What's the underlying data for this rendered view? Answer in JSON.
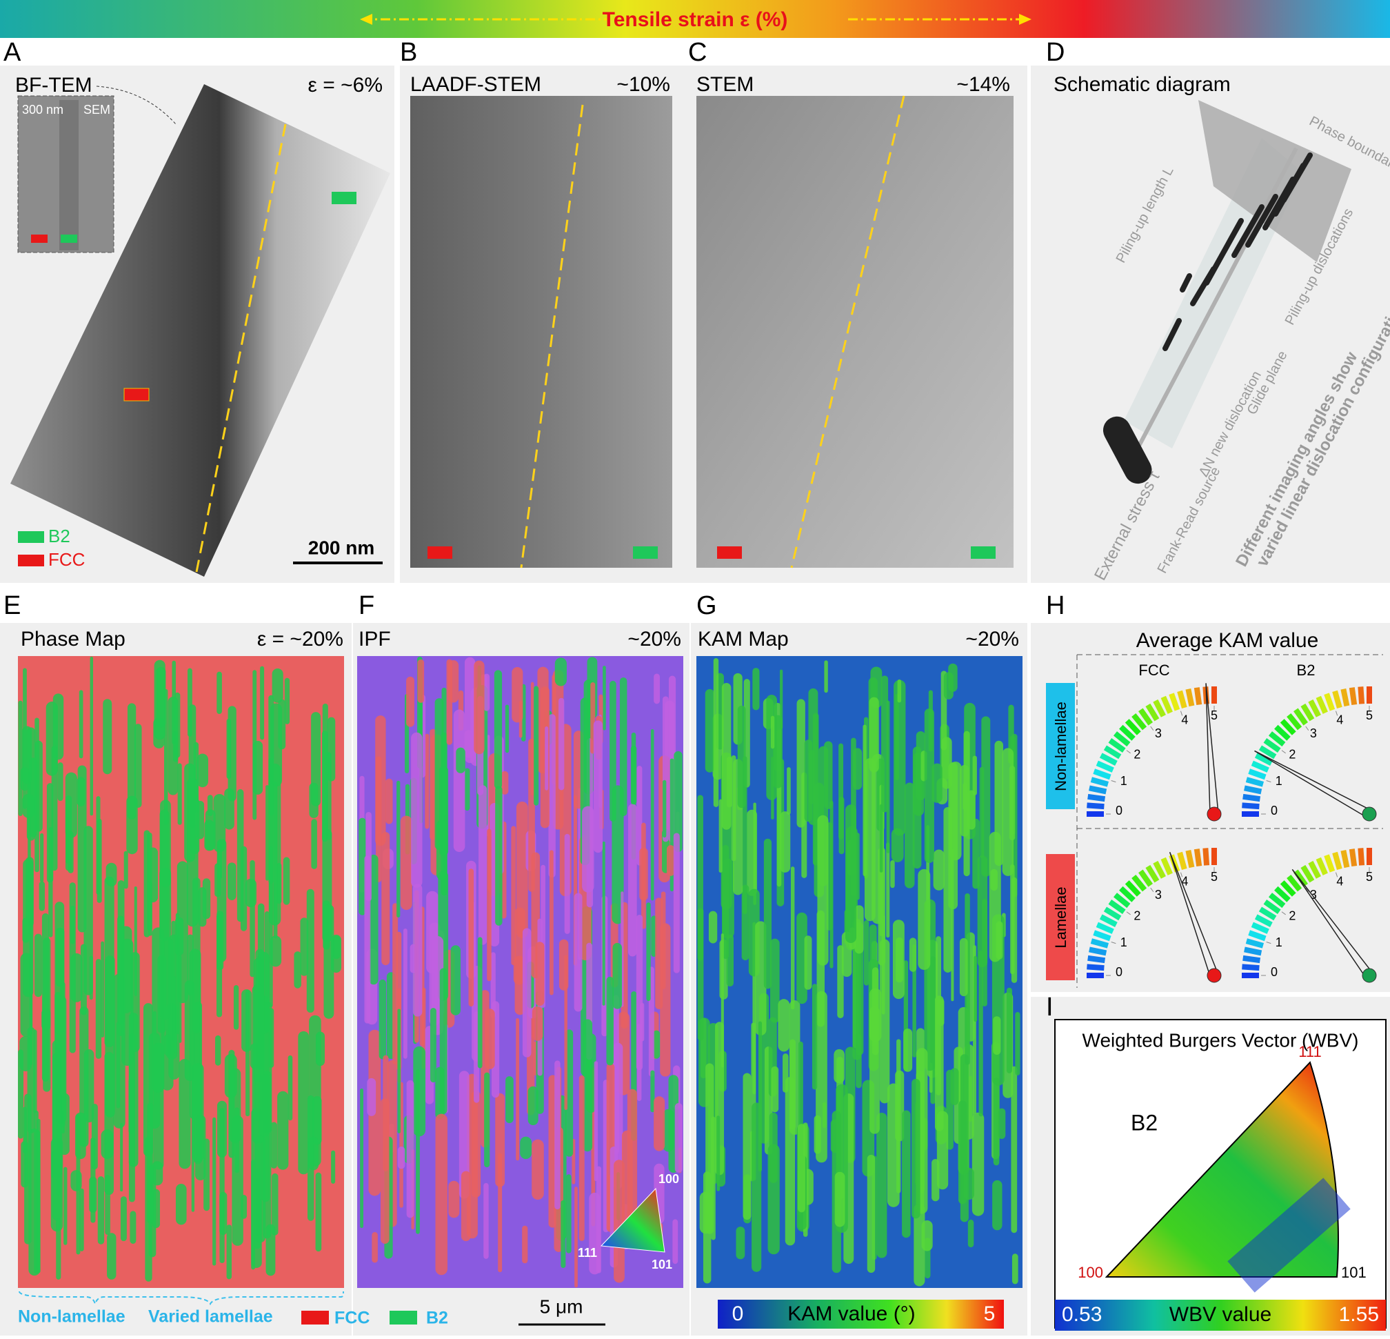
{
  "header": {
    "title": "Tensile strain ε (%)"
  },
  "panels": {
    "A": {
      "label": "A",
      "title": "BF-TEM",
      "strain": "ε = ~6%",
      "inset_scale": "300 nm",
      "inset_title": "SEM",
      "legend": [
        "B2",
        "FCC"
      ],
      "scale_bar": "200 nm"
    },
    "B": {
      "label": "B",
      "title": "LAADF-STEM",
      "strain": "~10%"
    },
    "C": {
      "label": "C",
      "title": "STEM",
      "strain": "~14%"
    },
    "D": {
      "label": "D",
      "title": "Schematic diagram",
      "annotations": [
        "Phase boundary",
        "Piling-up length L",
        "Piling-up dislocations",
        "Glide plane",
        "ΔN new dislocation",
        "Frank-Read source",
        "External stress τ",
        "Different imaging angles show",
        "varied linear dislocation configurations"
      ]
    },
    "E": {
      "label": "E",
      "title": "Phase Map",
      "strain": "ε = ~20%",
      "regions": [
        "Non-lamellae",
        "Varied lamellae"
      ],
      "legend": [
        "FCC",
        "B2"
      ]
    },
    "F": {
      "label": "F",
      "title": "IPF",
      "strain": "~20%",
      "triangle": [
        "100",
        "111",
        "101"
      ],
      "scale_bar": "5 μm"
    },
    "G": {
      "label": "G",
      "title": "KAM  Map",
      "strain": "~20%",
      "colorbar": {
        "min": 0,
        "max": 5,
        "label": "KAM value (°)"
      }
    },
    "H": {
      "label": "H",
      "title": "Average KAM value",
      "columns": [
        "FCC",
        "B2"
      ],
      "rows": [
        "Non-lamellae",
        "Lamellae"
      ],
      "ticks": [
        0,
        1,
        2,
        3,
        4,
        5
      ],
      "needles": [
        [
          4.8,
          1.6
        ],
        [
          3.9,
          3.0
        ]
      ]
    },
    "I": {
      "label": "I",
      "title": "Weighted Burgers Vector (WBV)",
      "phase": "B2",
      "corners": [
        "111",
        "100",
        "101"
      ],
      "colorbar": {
        "min": 0.53,
        "max": 1.55,
        "label": "WBV value"
      }
    }
  }
}
